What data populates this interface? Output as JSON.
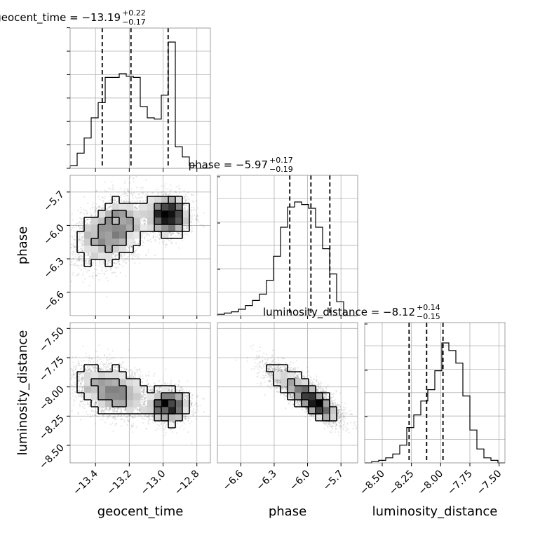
{
  "chart_data": {
    "type": "corner",
    "parameters": [
      {
        "name": "geocent_time",
        "median": "−13.19",
        "plus": "+0.22",
        "minus": "−0.17",
        "range": [
          -13.55,
          -12.72
        ],
        "ticks": [
          -13.4,
          -13.2,
          -13.0,
          -12.8
        ],
        "tick_labels": [
          "−13.4",
          "−13.2",
          "−13.0",
          "−12.8"
        ],
        "quantiles": [
          -13.36,
          -13.19,
          -12.97
        ]
      },
      {
        "name": "phase",
        "median": "−5.97",
        "plus": "+0.17",
        "minus": "−0.19",
        "range": [
          -6.81,
          -5.55
        ],
        "ticks": [
          -6.6,
          -6.3,
          -6.0,
          -5.7
        ],
        "tick_labels": [
          "−6.6",
          "−6.3",
          "−6.0",
          "−5.7"
        ],
        "quantiles": [
          -6.16,
          -5.97,
          -5.8
        ]
      },
      {
        "name": "luminosity_distance",
        "median": "−8.12",
        "plus": "+0.14",
        "minus": "−0.15",
        "range": [
          -8.65,
          -7.45
        ],
        "ticks": [
          -8.5,
          -8.25,
          -8.0,
          -7.75,
          -7.5
        ],
        "tick_labels": [
          "−8.50",
          "−8.25",
          "−8.00",
          "−7.75",
          "−7.50"
        ],
        "quantiles": [
          -8.27,
          -8.12,
          -7.98
        ]
      }
    ],
    "histograms": [
      [
        0.02,
        0.12,
        0.24,
        0.4,
        0.52,
        0.72,
        0.72,
        0.75,
        0.73,
        0.72,
        0.49,
        0.4,
        0.39,
        0.58,
        1.0,
        0.17,
        0.09,
        0.02,
        0.0,
        0.0
      ],
      [
        0.01,
        0.02,
        0.03,
        0.05,
        0.08,
        0.12,
        0.17,
        0.28,
        0.47,
        0.7,
        0.86,
        0.9,
        0.88,
        0.85,
        0.7,
        0.53,
        0.33,
        0.11,
        0.0,
        0.0
      ],
      [
        0.0,
        0.01,
        0.02,
        0.04,
        0.07,
        0.14,
        0.28,
        0.38,
        0.49,
        0.58,
        0.73,
        0.95,
        0.89,
        0.79,
        0.53,
        0.26,
        0.11,
        0.04,
        0.02,
        0.0
      ]
    ],
    "modes": {
      "geocent_time": [
        {
          "m": -13.3,
          "s": 0.09,
          "w": 0.6
        },
        {
          "m": -12.97,
          "s": 0.04,
          "w": 0.4
        }
      ],
      "phase_vs_time": [
        {
          "m": -6.05,
          "s": 0.14
        },
        {
          "m": -5.91,
          "s": 0.09
        }
      ],
      "distance_vs_time": [
        {
          "m": -8.05,
          "s": 0.12
        },
        {
          "m": -8.13,
          "s": 0.09
        }
      ],
      "phase_distance_slope": -0.66,
      "phase_distance_mean": [
        -5.97,
        -8.12
      ]
    },
    "grid": true,
    "contour_color": "#000000",
    "density_color": "#000000"
  }
}
